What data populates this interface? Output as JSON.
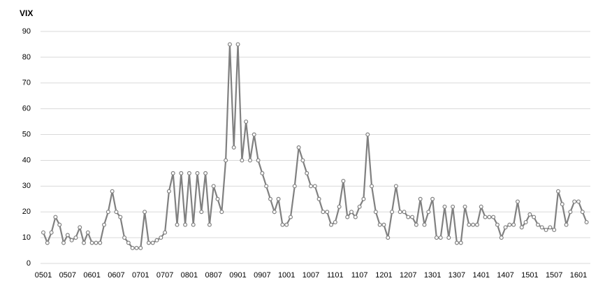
{
  "chart_data": {
    "type": "line",
    "title": "VIX",
    "categories": [
      "0501",
      null,
      null,
      null,
      null,
      null,
      "0507",
      null,
      null,
      null,
      null,
      null,
      "0601",
      null,
      null,
      null,
      null,
      null,
      "0607",
      null,
      null,
      null,
      null,
      null,
      "0701",
      null,
      null,
      null,
      null,
      null,
      "0707",
      null,
      null,
      null,
      null,
      null,
      "0801",
      null,
      null,
      null,
      null,
      null,
      "0807",
      null,
      null,
      null,
      null,
      null,
      "0901",
      null,
      null,
      null,
      null,
      null,
      "0907",
      null,
      null,
      null,
      null,
      null,
      "1001",
      null,
      null,
      null,
      null,
      null,
      "1007",
      null,
      null,
      null,
      null,
      null,
      "1101",
      null,
      null,
      null,
      null,
      null,
      "1107",
      null,
      null,
      null,
      null,
      null,
      "1201",
      null,
      null,
      null,
      null,
      null,
      "1207",
      null,
      null,
      null,
      null,
      null,
      "1301",
      null,
      null,
      null,
      null,
      null,
      "1307",
      null,
      null,
      null,
      null,
      null,
      "1401",
      null,
      null,
      null,
      null,
      null,
      "1407",
      null,
      null,
      null,
      null,
      null,
      "1501",
      null,
      null,
      null,
      null,
      null,
      "1507",
      null,
      null,
      null,
      null,
      null,
      "1601",
      null,
      null
    ],
    "values": [
      12,
      8,
      12,
      18,
      15,
      8,
      11,
      9,
      10,
      14,
      8,
      12,
      8,
      8,
      8,
      15,
      20,
      28,
      20,
      18,
      10,
      8,
      6,
      6,
      6,
      20,
      8,
      8,
      9,
      10,
      12,
      28,
      35,
      15,
      35,
      15,
      35,
      15,
      35,
      20,
      35,
      15,
      30,
      25,
      20,
      40,
      85,
      45,
      85,
      40,
      55,
      40,
      50,
      40,
      35,
      30,
      25,
      20,
      25,
      15,
      15,
      18,
      30,
      45,
      40,
      35,
      30,
      30,
      25,
      20,
      20,
      15,
      16,
      22,
      32,
      18,
      20,
      18,
      22,
      25,
      50,
      30,
      20,
      15,
      15,
      10,
      20,
      30,
      20,
      20,
      18,
      18,
      15,
      25,
      15,
      20,
      25,
      10,
      10,
      22,
      10,
      22,
      8,
      8,
      22,
      15,
      15,
      15,
      22,
      18,
      18,
      18,
      15,
      10,
      14,
      15,
      15,
      24,
      14,
      16,
      19,
      18,
      15,
      14,
      13,
      14,
      13,
      28,
      23,
      15,
      20,
      24,
      24,
      20,
      16
    ],
    "color": "#808080",
    "ylim": [
      0,
      90
    ],
    "yticks": [
      0,
      10,
      20,
      30,
      40,
      50,
      60,
      70,
      80,
      90
    ],
    "grid": true
  }
}
